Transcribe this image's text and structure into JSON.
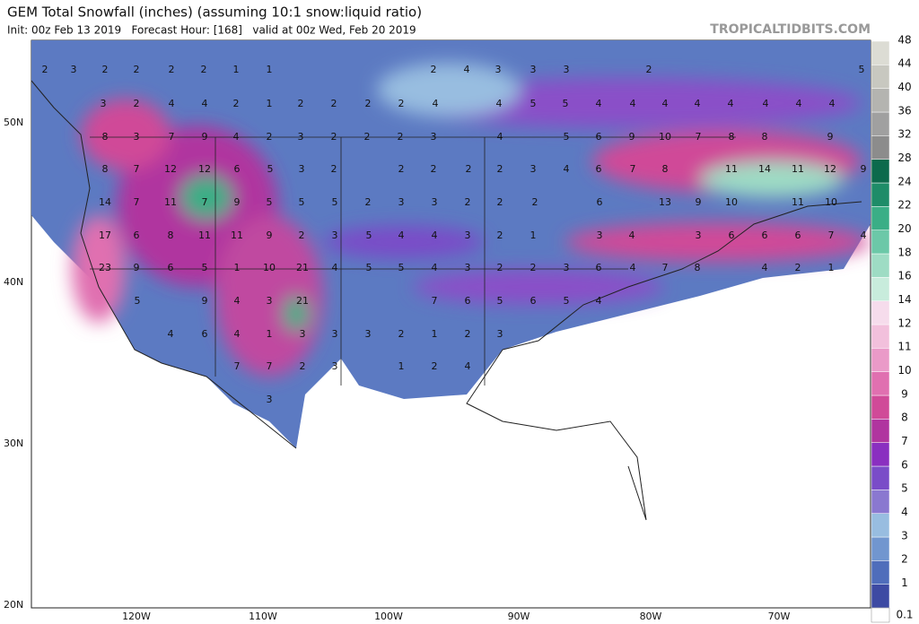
{
  "header": {
    "title": "GEM Total Snowfall (inches) (assuming 10:1 snow:liquid ratio)",
    "subtitle": "Init: 00z Feb 13 2019   Forecast Hour: [168]   valid at 00z Wed, Feb 20 2019",
    "site": "TROPICALTIDBITS.COM"
  },
  "lat_labels": [
    "50N",
    "40N",
    "30N",
    "20N"
  ],
  "lon_labels": [
    "120W",
    "110W",
    "100W",
    "90W",
    "80W",
    "70W"
  ],
  "colorbar": {
    "labels": [
      "0.1",
      "1",
      "2",
      "3",
      "4",
      "5",
      "6",
      "7",
      "8",
      "9",
      "10",
      "11",
      "12",
      "14",
      "16",
      "18",
      "20",
      "22",
      "24",
      "28",
      "32",
      "36",
      "40",
      "44",
      "48"
    ],
    "colors": [
      "#3d4aa3",
      "#4f6dbb",
      "#7196cf",
      "#98bde0",
      "#8a78d0",
      "#7a4cc8",
      "#8a2fc0",
      "#b0359f",
      "#d04a98",
      "#e070b0",
      "#ea9ac8",
      "#f2c0dc",
      "#f6dcec",
      "#c8ecdc",
      "#9edcc4",
      "#6cc8a8",
      "#3aae86",
      "#1e8c68",
      "#0c6a4c",
      "#8c8c8c",
      "#a0a0a0",
      "#b4b4b0",
      "#c8c8c0",
      "#dcdcd4"
    ]
  },
  "map_labels": [
    [
      "2",
      "3",
      "2",
      "2",
      "2",
      "2",
      "1",
      "1",
      "2",
      "4",
      "3",
      "3",
      "3",
      "2",
      "5"
    ],
    [
      "3",
      "2",
      "4",
      "4",
      "2",
      "1",
      "2",
      "2",
      "2",
      "2",
      "4",
      "4",
      "5",
      "5",
      "4",
      "4",
      "4",
      "4",
      "4",
      "4",
      "4",
      "4"
    ],
    [
      "8",
      "3",
      "7",
      "9",
      "4",
      "2",
      "3",
      "2",
      "2",
      "2",
      "3",
      "4",
      "5",
      "6",
      "9",
      "10",
      "7",
      "8",
      "8",
      "9"
    ],
    [
      "8",
      "7",
      "12",
      "12",
      "6",
      "5",
      "3",
      "2",
      "2",
      "2",
      "2",
      "2",
      "3",
      "4",
      "6",
      "7",
      "8",
      "11",
      "14",
      "11",
      "12",
      "9"
    ],
    [
      "14",
      "7",
      "11",
      "7",
      "9",
      "5",
      "5",
      "5",
      "2",
      "3",
      "3",
      "2",
      "2",
      "2",
      "6",
      "13",
      "9",
      "10",
      "11",
      "10"
    ],
    [
      "17",
      "6",
      "8",
      "11",
      "11",
      "9",
      "2",
      "3",
      "5",
      "4",
      "4",
      "3",
      "2",
      "1",
      "3",
      "4",
      "3",
      "6",
      "6",
      "6",
      "7",
      "4"
    ],
    [
      "23",
      "9",
      "6",
      "5",
      "1",
      "10",
      "21",
      "4",
      "5",
      "5",
      "4",
      "3",
      "2",
      "2",
      "3",
      "6",
      "4",
      "7",
      "8",
      "4",
      "2",
      "1"
    ],
    [
      "5",
      "9",
      "4",
      "3",
      "21",
      "7",
      "6",
      "5",
      "6",
      "5",
      "4"
    ],
    [
      "4",
      "6",
      "4",
      "1",
      "3",
      "3",
      "3",
      "2",
      "1",
      "2",
      "3"
    ],
    [
      "7",
      "7",
      "2",
      "3",
      "1",
      "2",
      "4"
    ],
    [
      "3"
    ]
  ]
}
